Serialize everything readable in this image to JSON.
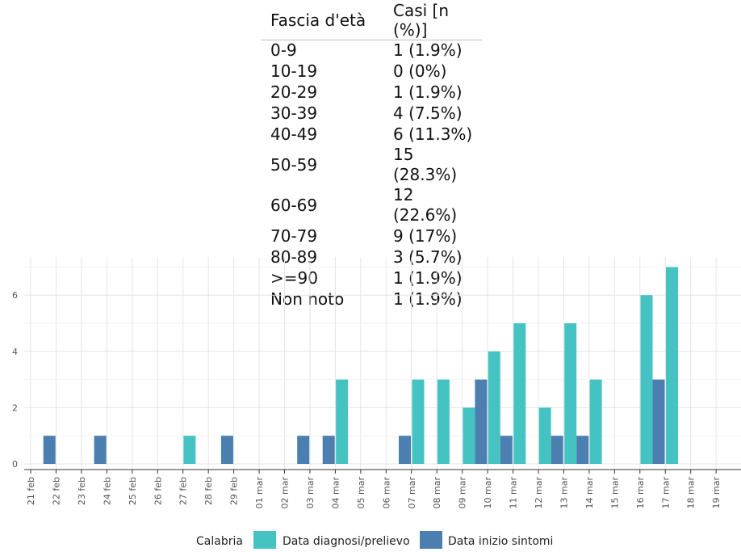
{
  "table": {
    "header_age": "Fascia d'età",
    "header_cases": "Casi [n (%)]",
    "rows": [
      {
        "age": "0-9",
        "cases": "1 (1.9%)"
      },
      {
        "age": "10-19",
        "cases": "0 (0%)"
      },
      {
        "age": "20-29",
        "cases": "1 (1.9%)"
      },
      {
        "age": "30-39",
        "cases": "4 (7.5%)"
      },
      {
        "age": "40-49",
        "cases": "6 (11.3%)"
      },
      {
        "age": "50-59",
        "cases": "15 (28.3%)"
      },
      {
        "age": "60-69",
        "cases": "12 (22.6%)"
      },
      {
        "age": "70-79",
        "cases": "9 (17%)"
      },
      {
        "age": "80-89",
        "cases": "3 (5.7%)"
      },
      {
        "age": ">=90",
        "cases": "1 (1.9%)"
      },
      {
        "age": "Non noto",
        "cases": "1 (1.9%)"
      }
    ]
  },
  "chart_data": {
    "type": "bar",
    "categories": [
      "21 feb",
      "22 feb",
      "23 feb",
      "24 feb",
      "25 feb",
      "26 feb",
      "27 feb",
      "28 feb",
      "29 feb",
      "01 mar",
      "02 mar",
      "03 mar",
      "04 mar",
      "05 mar",
      "06 mar",
      "07 mar",
      "08 mar",
      "09 mar",
      "10 mar",
      "11 mar",
      "12 mar",
      "13 mar",
      "14 mar",
      "15 mar",
      "16 mar",
      "17 mar",
      "18 mar",
      "19 mar"
    ],
    "series": [
      {
        "name": "Data diagnosi/prelievo",
        "color": "#45c3c3",
        "values": [
          0,
          0,
          0,
          0,
          0,
          0,
          1,
          0,
          0,
          0,
          0,
          0,
          3,
          0,
          0,
          3,
          3,
          2,
          4,
          5,
          2,
          5,
          3,
          0,
          6,
          7,
          0,
          0
        ]
      },
      {
        "name": "Data inizio sintomi",
        "color": "#4a7fb0",
        "values": [
          0,
          1,
          0,
          1,
          0,
          0,
          0,
          0,
          1,
          0,
          0,
          1,
          1,
          0,
          0,
          1,
          0,
          0,
          3,
          1,
          0,
          1,
          1,
          0,
          0,
          3,
          0,
          0
        ]
      }
    ],
    "xlabel": "",
    "ylabel": "",
    "ylim": [
      0,
      7.6
    ],
    "yticks": [
      0,
      2,
      4,
      6
    ],
    "grid": true,
    "legend": {
      "title": "Calabria",
      "position": "bottom"
    }
  }
}
